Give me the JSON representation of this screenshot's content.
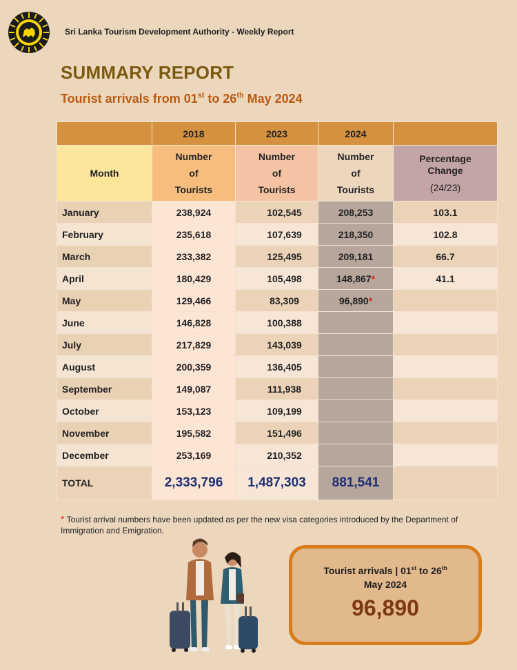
{
  "header": {
    "org": "Sri Lanka Tourism Development Authority - Weekly Report",
    "title": "SUMMARY REPORT",
    "subtitle": {
      "pre": "Tourist arrivals from 01",
      "sup1": "st",
      "mid": " to 26",
      "sup2": "th",
      "post": " May 2024"
    }
  },
  "table": {
    "years": [
      "2018",
      "2023",
      "2024"
    ],
    "month_header": "Month",
    "count_header_lines": [
      "Number",
      "of",
      "Tourists"
    ],
    "pct_header_lines": [
      "Percentage",
      "Change",
      "(24/23)"
    ],
    "rows": [
      {
        "month": "January",
        "v2018": "238,924",
        "v2023": "102,545",
        "v2024": "208,253",
        "star": "",
        "pct": "103.1"
      },
      {
        "month": "February",
        "v2018": "235,618",
        "v2023": "107,639",
        "v2024": "218,350",
        "star": "",
        "pct": "102.8"
      },
      {
        "month": "March",
        "v2018": "233,382",
        "v2023": "125,495",
        "v2024": "209,181",
        "star": "",
        "pct": "66.7"
      },
      {
        "month": "April",
        "v2018": "180,429",
        "v2023": "105,498",
        "v2024": "148,867",
        "star": "*",
        "pct": "41.1"
      },
      {
        "month": "May",
        "v2018": "129,466",
        "v2023": "83,309",
        "v2024": "96,890",
        "star": "*",
        "pct": ""
      },
      {
        "month": "June",
        "v2018": "146,828",
        "v2023": "100,388",
        "v2024": "",
        "star": "",
        "pct": ""
      },
      {
        "month": "July",
        "v2018": "217,829",
        "v2023": "143,039",
        "v2024": "",
        "star": "",
        "pct": ""
      },
      {
        "month": "August",
        "v2018": "200,359",
        "v2023": "136,405",
        "v2024": "",
        "star": "",
        "pct": ""
      },
      {
        "month": "September",
        "v2018": "149,087",
        "v2023": "111,938",
        "v2024": "",
        "star": "",
        "pct": ""
      },
      {
        "month": "October",
        "v2018": "153,123",
        "v2023": "109,199",
        "v2024": "",
        "star": "",
        "pct": ""
      },
      {
        "month": "November",
        "v2018": "195,582",
        "v2023": "151,496",
        "v2024": "",
        "star": "",
        "pct": ""
      },
      {
        "month": "December",
        "v2018": "253,169",
        "v2023": "210,352",
        "v2024": "",
        "star": "",
        "pct": ""
      }
    ],
    "total": {
      "label": "TOTAL",
      "v2018": "2,333,796",
      "v2023": "1,487,303",
      "v2024": "881,541"
    }
  },
  "footnote": {
    "marker": "*",
    "text": " Tourist arrival numbers have been updated as per the new visa categories introduced by the Department of Immigration and Emigration."
  },
  "card": {
    "pre": "Tourist arrivals | 01",
    "sup1": "st",
    "mid": " to 26",
    "sup2": "th",
    "line2": "May 2024",
    "value": "96,890"
  },
  "colors": {
    "title": "#7b5a10",
    "subtitle": "#b85a12",
    "header_bar": "#d5913e",
    "total_numbers": "#1f2f74",
    "card_border": "#d97d1c"
  },
  "icons": {
    "logo": "sri-lanka-lion-emblem",
    "illustration": "travelers-with-suitcases"
  }
}
